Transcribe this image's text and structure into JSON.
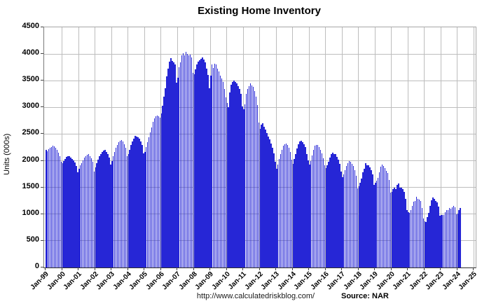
{
  "title": "Existing Home Inventory",
  "y_axis": {
    "label": "Units (000s)",
    "tick_labels": [
      "0",
      "500",
      "1000",
      "1500",
      "2000",
      "2500",
      "3000",
      "3500",
      "4000",
      "4500"
    ]
  },
  "x_axis": {
    "tick_labels": [
      "Jan-99",
      "Jan-00",
      "Jan-01",
      "Jan-02",
      "Jan-03",
      "Jan-04",
      "Jan-05",
      "Jan-06",
      "Jan-07",
      "Jan-08",
      "Jan-09",
      "Jan-10",
      "Jan-11",
      "Jan-12",
      "Jan-13",
      "Jan-14",
      "Jan-15",
      "Jan-16",
      "Jan-17",
      "Jan-18",
      "Jan-19",
      "Jan-20",
      "Jan-21",
      "Jan-22",
      "Jan-23",
      "Jan-24",
      "Jan-25"
    ]
  },
  "footer": {
    "url": "http://www.calculatedriskblog.com/",
    "source": "Source: NAR"
  },
  "colors": {
    "bar": "#2626d6",
    "gridline": "#bdbdbd",
    "text": "#000000"
  },
  "chart_data": {
    "type": "bar",
    "title": "Existing Home Inventory",
    "xlabel": "",
    "ylabel": "Units (000s)",
    "ylim": [
      0,
      4500
    ],
    "y_step": 500,
    "grid": true,
    "legend": false,
    "start_month": "1999-01",
    "end_month": "2024-03",
    "months_per_axis_tick": 12,
    "x_tick_labels": [
      "Jan-99",
      "Jan-00",
      "Jan-01",
      "Jan-02",
      "Jan-03",
      "Jan-04",
      "Jan-05",
      "Jan-06",
      "Jan-07",
      "Jan-08",
      "Jan-09",
      "Jan-10",
      "Jan-11",
      "Jan-12",
      "Jan-13",
      "Jan-14",
      "Jan-15",
      "Jan-16",
      "Jan-17",
      "Jan-18",
      "Jan-19",
      "Jan-20",
      "Jan-21",
      "Jan-22",
      "Jan-23",
      "Jan-24",
      "Jan-25"
    ],
    "values": [
      2210,
      2180,
      2220,
      2250,
      2260,
      2280,
      2270,
      2240,
      2200,
      2150,
      2090,
      1980,
      1960,
      2000,
      2040,
      2070,
      2090,
      2080,
      2060,
      2040,
      2010,
      1970,
      1900,
      1780,
      1850,
      1910,
      1960,
      2010,
      2060,
      2090,
      2110,
      2120,
      2090,
      2050,
      1980,
      1800,
      1880,
      1950,
      2020,
      2080,
      2130,
      2170,
      2190,
      2200,
      2170,
      2130,
      2060,
      1930,
      2000,
      2080,
      2170,
      2240,
      2300,
      2350,
      2380,
      2390,
      2360,
      2310,
      2240,
      2080,
      2120,
      2200,
      2290,
      2360,
      2420,
      2470,
      2460,
      2440,
      2410,
      2360,
      2290,
      2140,
      2160,
      2260,
      2350,
      2440,
      2530,
      2630,
      2730,
      2800,
      2840,
      2850,
      2830,
      2810,
      2880,
      3030,
      3200,
      3360,
      3580,
      3720,
      3860,
      3920,
      3870,
      3840,
      3800,
      3460,
      3550,
      3750,
      3840,
      3970,
      4010,
      3980,
      4040,
      4000,
      3970,
      3990,
      3930,
      3650,
      3620,
      3710,
      3800,
      3860,
      3890,
      3910,
      3940,
      3900,
      3840,
      3720,
      3610,
      3360,
      3600,
      3800,
      3740,
      3820,
      3800,
      3720,
      3680,
      3600,
      3540,
      3480,
      3340,
      3190,
      3080,
      3000,
      3280,
      3420,
      3480,
      3500,
      3480,
      3450,
      3400,
      3340,
      3250,
      3020,
      2960,
      3060,
      3260,
      3340,
      3400,
      3450,
      3410,
      3380,
      3300,
      3200,
      3050,
      2720,
      2600,
      2680,
      2700,
      2640,
      2580,
      2520,
      2460,
      2400,
      2320,
      2240,
      2140,
      1980,
      1850,
      1930,
      2030,
      2130,
      2210,
      2280,
      2310,
      2320,
      2290,
      2250,
      2160,
      2020,
      1940,
      2040,
      2130,
      2230,
      2310,
      2360,
      2370,
      2350,
      2310,
      2260,
      2120,
      2010,
      1930,
      2000,
      2100,
      2200,
      2280,
      2300,
      2290,
      2260,
      2210,
      2140,
      2050,
      1920,
      1860,
      1920,
      1980,
      2060,
      2130,
      2150,
      2130,
      2120,
      2070,
      2020,
      1940,
      1800,
      1690,
      1750,
      1830,
      1900,
      1960,
      2000,
      1980,
      1940,
      1900,
      1830,
      1720,
      1480,
      1520,
      1590,
      1670,
      1790,
      1850,
      1950,
      1920,
      1920,
      1880,
      1830,
      1740,
      1550,
      1590,
      1630,
      1680,
      1790,
      1890,
      1930,
      1900,
      1860,
      1810,
      1770,
      1640,
      1400,
      1420,
      1470,
      1500,
      1470,
      1550,
      1570,
      1500,
      1490,
      1470,
      1420,
      1280,
      1070,
      1040,
      1030,
      1070,
      1160,
      1230,
      1250,
      1320,
      1290,
      1270,
      1250,
      1110,
      920,
      860,
      850,
      950,
      1030,
      1160,
      1260,
      1310,
      1280,
      1250,
      1220,
      1140,
      970,
      980,
      980,
      980,
      1040,
      1080,
      1080,
      1110,
      1100,
      1130,
      1150,
      1130,
      1000,
      1010,
      1070,
      1110
    ]
  }
}
